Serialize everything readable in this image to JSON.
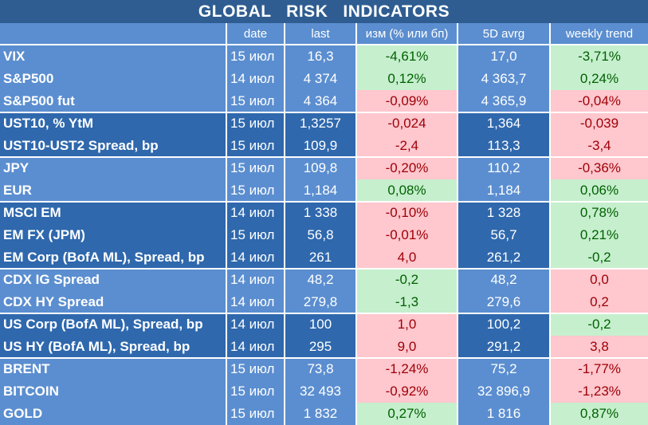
{
  "title": "GLOBAL   RISK   INDICATORS",
  "columns": [
    "",
    "date",
    "last",
    "изм (% или бп)",
    "5D avrg",
    "weekly trend"
  ],
  "rows": [
    {
      "name": "VIX",
      "date": "15 июл",
      "last": "16,3",
      "chg": "-4,61%",
      "chg_sign": "pos",
      "avg": "17,0",
      "trend": "-3,71%",
      "trend_sign": "pos",
      "shade": "lt"
    },
    {
      "name": "S&P500",
      "date": "14 июл",
      "last": "4 374",
      "chg": "0,12%",
      "chg_sign": "pos",
      "avg": "4 363,7",
      "trend": "0,24%",
      "trend_sign": "pos",
      "shade": "lt"
    },
    {
      "name": "S&P500 fut",
      "date": "15 июл",
      "last": "4 364",
      "chg": "-0,09%",
      "chg_sign": "neg",
      "avg": "4 365,9",
      "trend": "-0,04%",
      "trend_sign": "neg",
      "shade": "lt"
    },
    {
      "name": "UST10, % YtM",
      "date": "15 июл",
      "last": "1,3257",
      "chg": "-0,024",
      "chg_sign": "neg",
      "avg": "1,364",
      "trend": "-0,039",
      "trend_sign": "neg",
      "shade": "dk"
    },
    {
      "name": "UST10-UST2 Spread, bp",
      "date": "15 июл",
      "last": "109,9",
      "chg": "-2,4",
      "chg_sign": "neg",
      "avg": "113,3",
      "trend": "-3,4",
      "trend_sign": "neg",
      "shade": "dk"
    },
    {
      "name": "JPY",
      "date": "15 июл",
      "last": "109,8",
      "chg": "-0,20%",
      "chg_sign": "neg",
      "avg": "110,2",
      "trend": "-0,36%",
      "trend_sign": "neg",
      "shade": "lt"
    },
    {
      "name": "EUR",
      "date": "15 июл",
      "last": "1,184",
      "chg": "0,08%",
      "chg_sign": "pos",
      "avg": "1,184",
      "trend": "0,06%",
      "trend_sign": "pos",
      "shade": "lt"
    },
    {
      "name": "MSCI EM",
      "date": "14 июл",
      "last": "1 338",
      "chg": "-0,10%",
      "chg_sign": "neg",
      "avg": "1 328",
      "trend": "0,78%",
      "trend_sign": "pos",
      "shade": "dk"
    },
    {
      "name": "EM FX (JPM)",
      "date": "15 июл",
      "last": "56,8",
      "chg": "-0,01%",
      "chg_sign": "neg",
      "avg": "56,7",
      "trend": "0,21%",
      "trend_sign": "pos",
      "shade": "dk"
    },
    {
      "name": "EM Corp (BofA ML), Spread, bp",
      "date": "14 июл",
      "last": "261",
      "chg": "4,0",
      "chg_sign": "neg",
      "avg": "261,2",
      "trend": "-0,2",
      "trend_sign": "pos",
      "shade": "dk"
    },
    {
      "name": "CDX IG Spread",
      "date": "14 июл",
      "last": "48,2",
      "chg": "-0,2",
      "chg_sign": "pos",
      "avg": "48,2",
      "trend": "0,0",
      "trend_sign": "neg",
      "shade": "lt"
    },
    {
      "name": "CDX HY Spread",
      "date": "14 июл",
      "last": "279,8",
      "chg": "-1,3",
      "chg_sign": "pos",
      "avg": "279,6",
      "trend": "0,2",
      "trend_sign": "neg",
      "shade": "lt"
    },
    {
      "name": "US Corp (BofA ML), Spread, bp",
      "date": "14 июл",
      "last": "100",
      "chg": "1,0",
      "chg_sign": "neg",
      "avg": "100,2",
      "trend": "-0,2",
      "trend_sign": "pos",
      "shade": "dk"
    },
    {
      "name": "US HY (BofA ML), Spread, bp",
      "date": "14 июл",
      "last": "295",
      "chg": "9,0",
      "chg_sign": "neg",
      "avg": "291,2",
      "trend": "3,8",
      "trend_sign": "neg",
      "shade": "dk"
    },
    {
      "name": "BRENT",
      "date": "15 июл",
      "last": "73,8",
      "chg": "-1,24%",
      "chg_sign": "neg",
      "avg": "75,2",
      "trend": "-1,77%",
      "trend_sign": "neg",
      "shade": "lt"
    },
    {
      "name": "BITCOIN",
      "date": "15 июл",
      "last": "32 493",
      "chg": "-0,92%",
      "chg_sign": "neg",
      "avg": "32 896,9",
      "trend": "-1,23%",
      "trend_sign": "neg",
      "shade": "lt"
    },
    {
      "name": "GOLD",
      "date": "15 июл",
      "last": "1 832",
      "chg": "0,27%",
      "chg_sign": "pos",
      "avg": "1 816",
      "trend": "0,87%",
      "trend_sign": "pos",
      "shade": "lt"
    }
  ],
  "colors": {
    "title_bg": "#2f5d91",
    "light_row": "#5b8ed0",
    "dark_row": "#2f68ad",
    "positive_bg": "#c6efce",
    "positive_text": "#006100",
    "negative_bg": "#ffc7ce",
    "negative_text": "#9c0006"
  }
}
